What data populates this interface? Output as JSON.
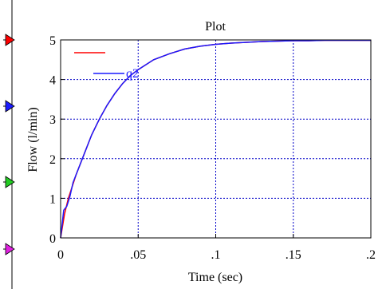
{
  "colors": {
    "background": "#ffffff",
    "frame": "#000000",
    "grid": "#0000c8",
    "series_red": "#ff0000",
    "series_blue": "#1a1aff",
    "port_red": "#ff0000",
    "port_blue": "#1a1aff",
    "port_green": "#22cc22",
    "port_magenta": "#e020e0"
  },
  "ports": [
    {
      "name": "port-red-arrow-icon",
      "color": "#ff0000"
    },
    {
      "name": "port-blue-arrow-icon",
      "color": "#1a1aff"
    },
    {
      "name": "port-green-arrow-icon",
      "color": "#22cc22"
    },
    {
      "name": "port-magenta-arrow-icon",
      "color": "#e020e0"
    }
  ],
  "chart_data": {
    "type": "line",
    "title": "Plot",
    "xlabel": "Time (sec)",
    "ylabel": "Flow (l/min)",
    "xlim": [
      0,
      0.2
    ],
    "ylim": [
      0,
      5
    ],
    "x_ticks": [
      0,
      0.05,
      0.1,
      0.15,
      0.2
    ],
    "x_tick_labels": [
      "0",
      ".05",
      ".1",
      ".15",
      ".2"
    ],
    "y_ticks": [
      0,
      1,
      2,
      3,
      4,
      5
    ],
    "y_tick_labels": [
      "0",
      "1",
      "2",
      "3",
      "4",
      "5"
    ],
    "grid": true,
    "legend_position": "top-left",
    "series": [
      {
        "name": "",
        "color": "#ff0000",
        "x": [
          0,
          0.0025,
          0.005,
          0.0075,
          0.01,
          0.015,
          0.02,
          0.025,
          0.03,
          0.035,
          0.04,
          0.045,
          0.05,
          0.06,
          0.07,
          0.08,
          0.09,
          0.1,
          0.11,
          0.12,
          0.13,
          0.14,
          0.15,
          0.16,
          0.17,
          0.18,
          0.19,
          0.2
        ],
        "y": [
          0,
          0.6,
          1.0,
          1.3,
          1.6,
          2.1,
          2.6,
          3.0,
          3.35,
          3.65,
          3.9,
          4.1,
          4.25,
          4.5,
          4.65,
          4.77,
          4.84,
          4.89,
          4.92,
          4.94,
          4.96,
          4.97,
          4.98,
          4.98,
          4.99,
          4.99,
          4.99,
          4.99
        ]
      },
      {
        "name": "q2",
        "color": "#1a1aff",
        "x": [
          0,
          0.002,
          0.004,
          0.006,
          0.008,
          0.01,
          0.015,
          0.02,
          0.025,
          0.03,
          0.035,
          0.04,
          0.045,
          0.05,
          0.06,
          0.07,
          0.08,
          0.09,
          0.1,
          0.11,
          0.12,
          0.13,
          0.14,
          0.15,
          0.16,
          0.17,
          0.18,
          0.19,
          0.2
        ],
        "y": [
          0,
          0.7,
          0.8,
          1.05,
          1.4,
          1.6,
          2.1,
          2.6,
          3.0,
          3.35,
          3.65,
          3.9,
          4.1,
          4.25,
          4.5,
          4.65,
          4.77,
          4.84,
          4.89,
          4.92,
          4.94,
          4.96,
          4.97,
          4.98,
          4.98,
          4.99,
          4.99,
          4.99,
          4.99
        ]
      }
    ]
  }
}
